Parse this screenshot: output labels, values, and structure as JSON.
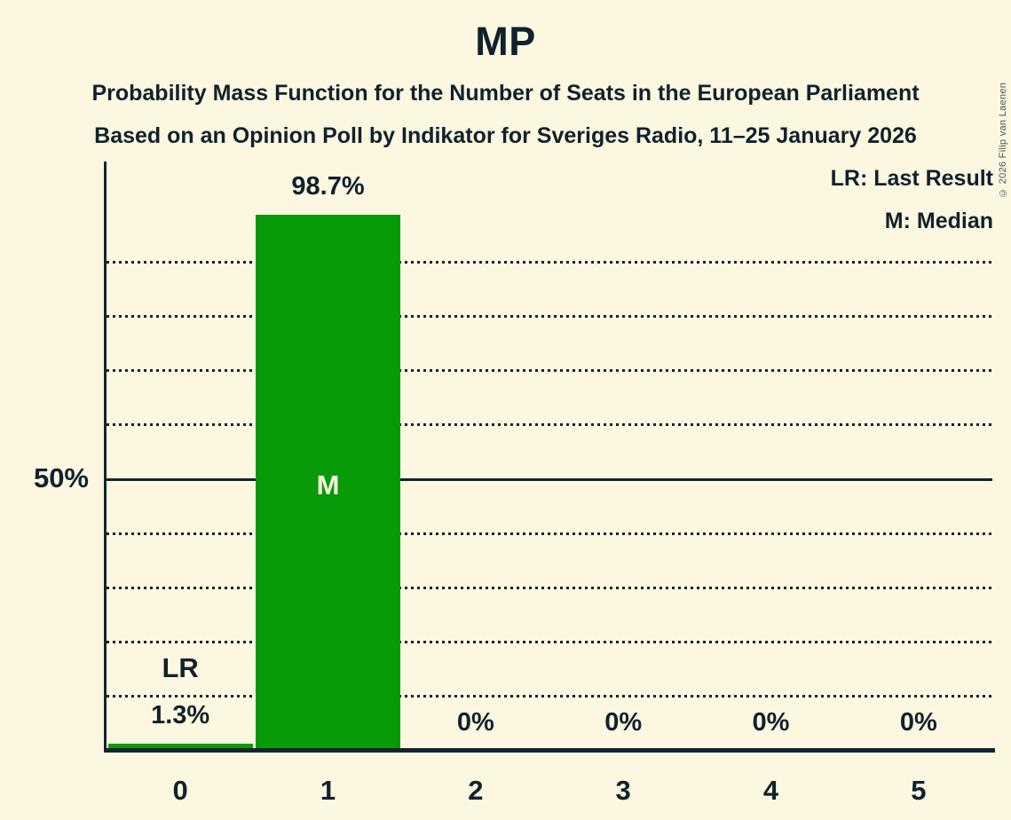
{
  "title": "MP",
  "subtitle1": "Probability Mass Function for the Number of Seats in the European Parliament",
  "subtitle2": "Based on an Opinion Poll by Indikator for Sveriges Radio, 11–25 January 2026",
  "copyright": "© 2026 Filip van Laenen",
  "legend": {
    "lr": "LR: Last Result",
    "m": "M: Median"
  },
  "y_axis": {
    "tick_label": "50%"
  },
  "chart_data": {
    "type": "bar",
    "title": "MP",
    "xlabel": "",
    "ylabel": "",
    "categories": [
      "0",
      "1",
      "2",
      "3",
      "4",
      "5"
    ],
    "values": [
      1.3,
      98.7,
      0,
      0,
      0,
      0
    ],
    "bar_labels": [
      "1.3%",
      "98.7%",
      "0%",
      "0%",
      "0%",
      "0%"
    ],
    "annotations": [
      {
        "category_index": 0,
        "text": "LR",
        "placement": "above-label"
      },
      {
        "category_index": 1,
        "text": "M",
        "placement": "bar-center"
      }
    ],
    "ylim": [
      0,
      108
    ],
    "solid_line_percent": 50,
    "dotted_gridlines_percent": [
      10,
      20,
      30,
      40,
      60,
      70,
      80,
      90
    ],
    "grid": "horizontal-dotted",
    "legend_position": "top-right",
    "colors": {
      "bar": "#089A08",
      "background": "#FCF7E1",
      "text": "#11222C",
      "axis": "#15242E",
      "bar_annotation_text": "#FCF7E1",
      "copyright_text": "#4A555E"
    }
  }
}
